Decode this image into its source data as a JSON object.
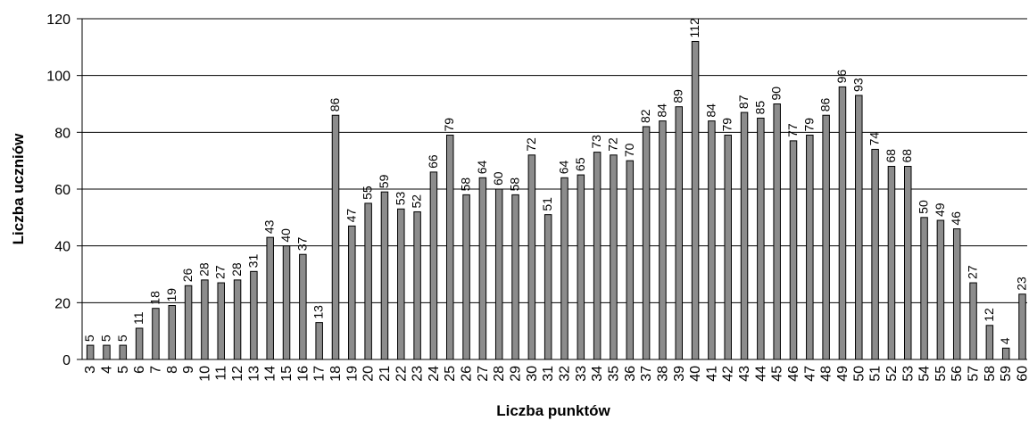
{
  "chart_data": {
    "type": "bar",
    "xlabel": "Liczba punktów",
    "ylabel": "Liczba uczniów",
    "ylim": [
      0,
      120
    ],
    "yticks": [
      0,
      20,
      40,
      60,
      80,
      100,
      120
    ],
    "grid": true,
    "colors": {
      "bar_fill": "#8c8c8c",
      "bar_stroke": "#000000",
      "grid": "#000000"
    },
    "categories": [
      "3",
      "4",
      "5",
      "6",
      "7",
      "8",
      "9",
      "10",
      "11",
      "12",
      "13",
      "14",
      "15",
      "16",
      "17",
      "18",
      "19",
      "20",
      "21",
      "22",
      "23",
      "24",
      "25",
      "26",
      "27",
      "28",
      "29",
      "30",
      "31",
      "32",
      "33",
      "34",
      "35",
      "36",
      "37",
      "38",
      "39",
      "40",
      "41",
      "42",
      "43",
      "44",
      "45",
      "46",
      "47",
      "48",
      "49",
      "50",
      "51",
      "52",
      "53",
      "54",
      "55",
      "56",
      "57",
      "58",
      "59",
      "60"
    ],
    "values": [
      5,
      5,
      5,
      11,
      18,
      19,
      26,
      28,
      27,
      28,
      31,
      43,
      40,
      37,
      13,
      86,
      47,
      55,
      59,
      53,
      52,
      66,
      79,
      58,
      64,
      60,
      58,
      72,
      51,
      64,
      65,
      73,
      72,
      70,
      82,
      84,
      89,
      112,
      84,
      79,
      87,
      85,
      90,
      77,
      79,
      86,
      96,
      93,
      74,
      68,
      68,
      50,
      49,
      46,
      27,
      12,
      4,
      23
    ]
  }
}
